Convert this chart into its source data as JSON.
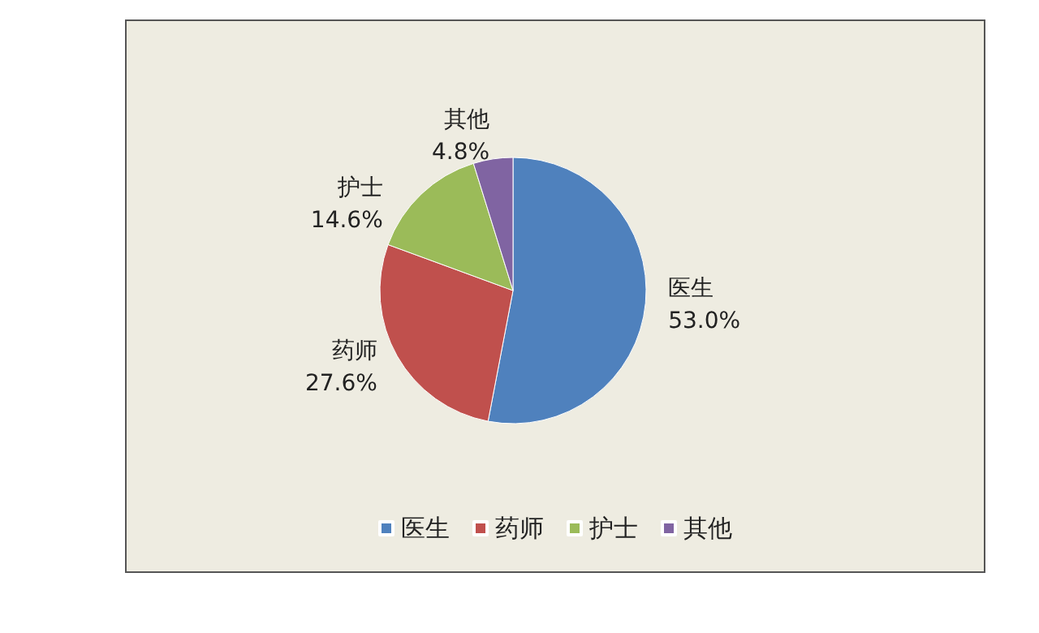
{
  "chart_data": {
    "type": "pie",
    "categories": [
      "医生",
      "药师",
      "护士",
      "其他"
    ],
    "values": [
      53.0,
      27.6,
      14.6,
      4.8
    ],
    "value_labels": [
      "53.0%",
      "27.6%",
      "14.6%",
      "4.8%"
    ],
    "colors": [
      "#4f81bd",
      "#c0504d",
      "#9bbb59",
      "#8064a2"
    ],
    "legend": "bottom"
  }
}
